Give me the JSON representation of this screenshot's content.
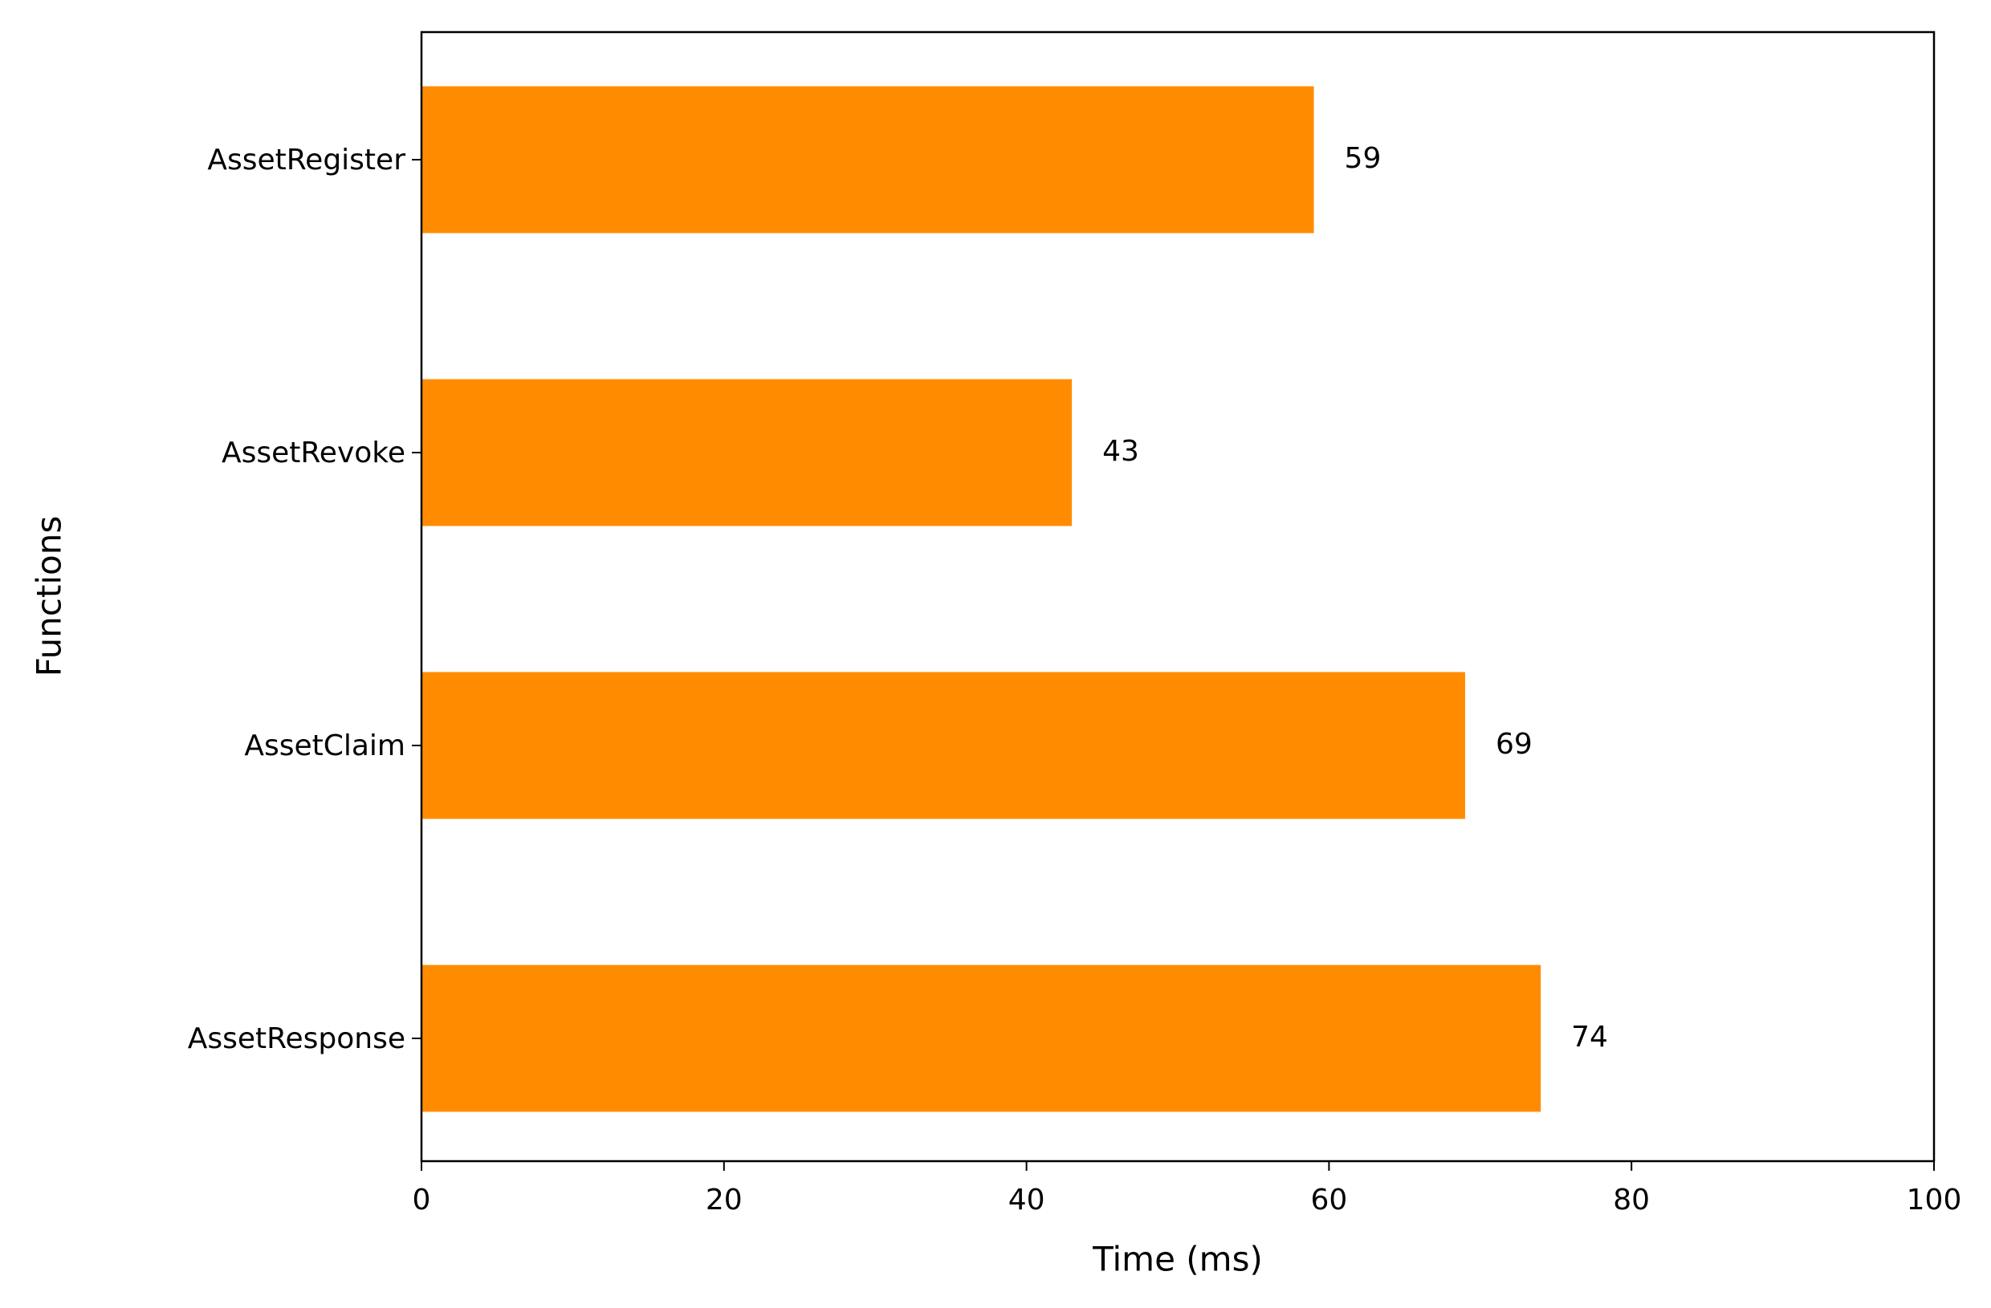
{
  "chart_data": {
    "type": "barh",
    "xlabel": "Time (ms)",
    "ylabel": "Functions",
    "categories": [
      "AssetRegister",
      "AssetRevoke",
      "AssetClaim",
      "AssetResponse"
    ],
    "values": [
      59,
      43,
      69,
      74
    ],
    "color": "#ff8c00",
    "xlim": [
      0,
      100
    ],
    "xticks": [
      0,
      20,
      40,
      60,
      80,
      100
    ],
    "show_value_labels": true
  }
}
